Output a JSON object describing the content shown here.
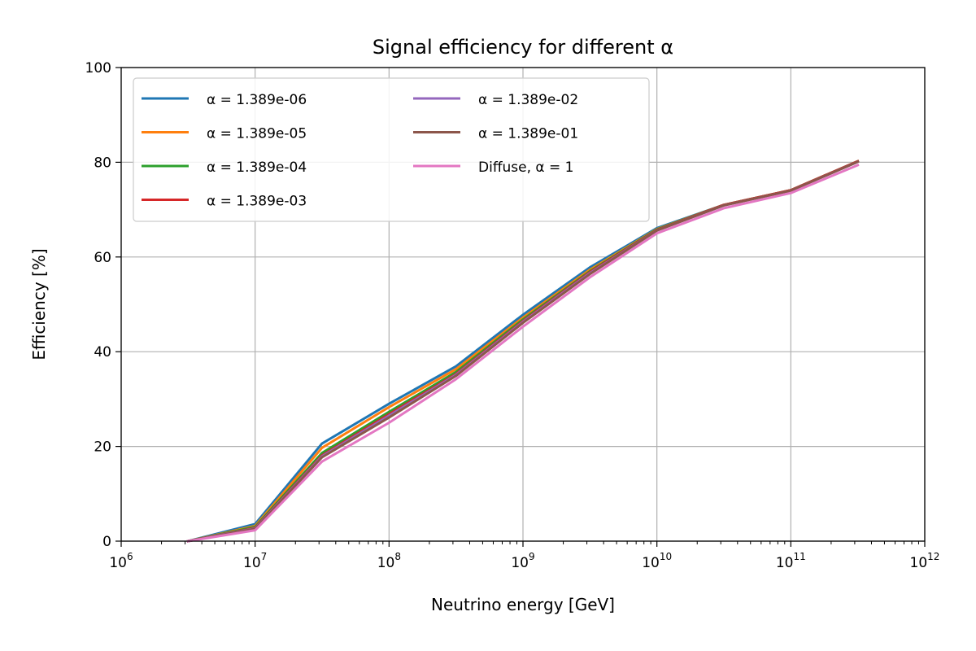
{
  "chart_data": {
    "type": "line",
    "title": "Signal efficiency for different α",
    "xlabel": "Neutrino energy [GeV]",
    "ylabel": "Efficiency [%]",
    "xscale": "log",
    "xlim": [
      1000000,
      1000000000000
    ],
    "ylim": [
      0,
      100
    ],
    "x_ticks": [
      {
        "base": "10",
        "exp": "6"
      },
      {
        "base": "10",
        "exp": "7"
      },
      {
        "base": "10",
        "exp": "8"
      },
      {
        "base": "10",
        "exp": "9"
      },
      {
        "base": "10",
        "exp": "10"
      },
      {
        "base": "10",
        "exp": "11"
      },
      {
        "base": "10",
        "exp": "12"
      }
    ],
    "y_ticks": [
      "0",
      "20",
      "40",
      "60",
      "80",
      "100"
    ],
    "grid": true,
    "legend_position": "top-left",
    "legend_columns": 2,
    "x": [
      3160000,
      10000000,
      31600000,
      100000000,
      316000000,
      1000000000,
      3160000000,
      10000000000,
      31600000000,
      100000000000,
      316000000000
    ],
    "series": [
      {
        "name": "α = 1.389e-06",
        "color": "#1f77b4",
        "values": [
          0,
          3.6,
          20.6,
          29.0,
          36.9,
          47.8,
          57.8,
          66.1,
          71.0,
          74.1,
          80.2
        ]
      },
      {
        "name": "α = 1.389e-05",
        "color": "#ff7f0e",
        "values": [
          0,
          3.2,
          19.7,
          28.3,
          36.3,
          47.2,
          57.3,
          65.9,
          71.0,
          74.1,
          80.2
        ]
      },
      {
        "name": "α = 1.389e-04",
        "color": "#2ca02c",
        "values": [
          0,
          3.0,
          18.6,
          27.3,
          35.7,
          46.8,
          57.0,
          65.8,
          71.0,
          74.1,
          80.2
        ]
      },
      {
        "name": "α = 1.389e-03",
        "color": "#d62728",
        "values": [
          0,
          2.8,
          18.1,
          26.8,
          35.3,
          46.5,
          56.8,
          65.7,
          71.0,
          74.1,
          80.2
        ]
      },
      {
        "name": "α = 1.389e-02",
        "color": "#9467bd",
        "values": [
          0,
          2.7,
          17.9,
          26.5,
          35.1,
          46.3,
          56.6,
          65.6,
          70.9,
          74.0,
          80.1
        ]
      },
      {
        "name": "α = 1.389e-01",
        "color": "#8c564b",
        "values": [
          0,
          2.6,
          17.7,
          26.1,
          34.9,
          46.1,
          56.4,
          65.6,
          70.9,
          74.0,
          80.1
        ]
      },
      {
        "name": "Diffuse, α = 1",
        "color": "#e377c2",
        "values": [
          0,
          2.3,
          16.8,
          25.0,
          34.2,
          45.3,
          55.7,
          65.0,
          70.3,
          73.5,
          79.4
        ]
      }
    ]
  }
}
